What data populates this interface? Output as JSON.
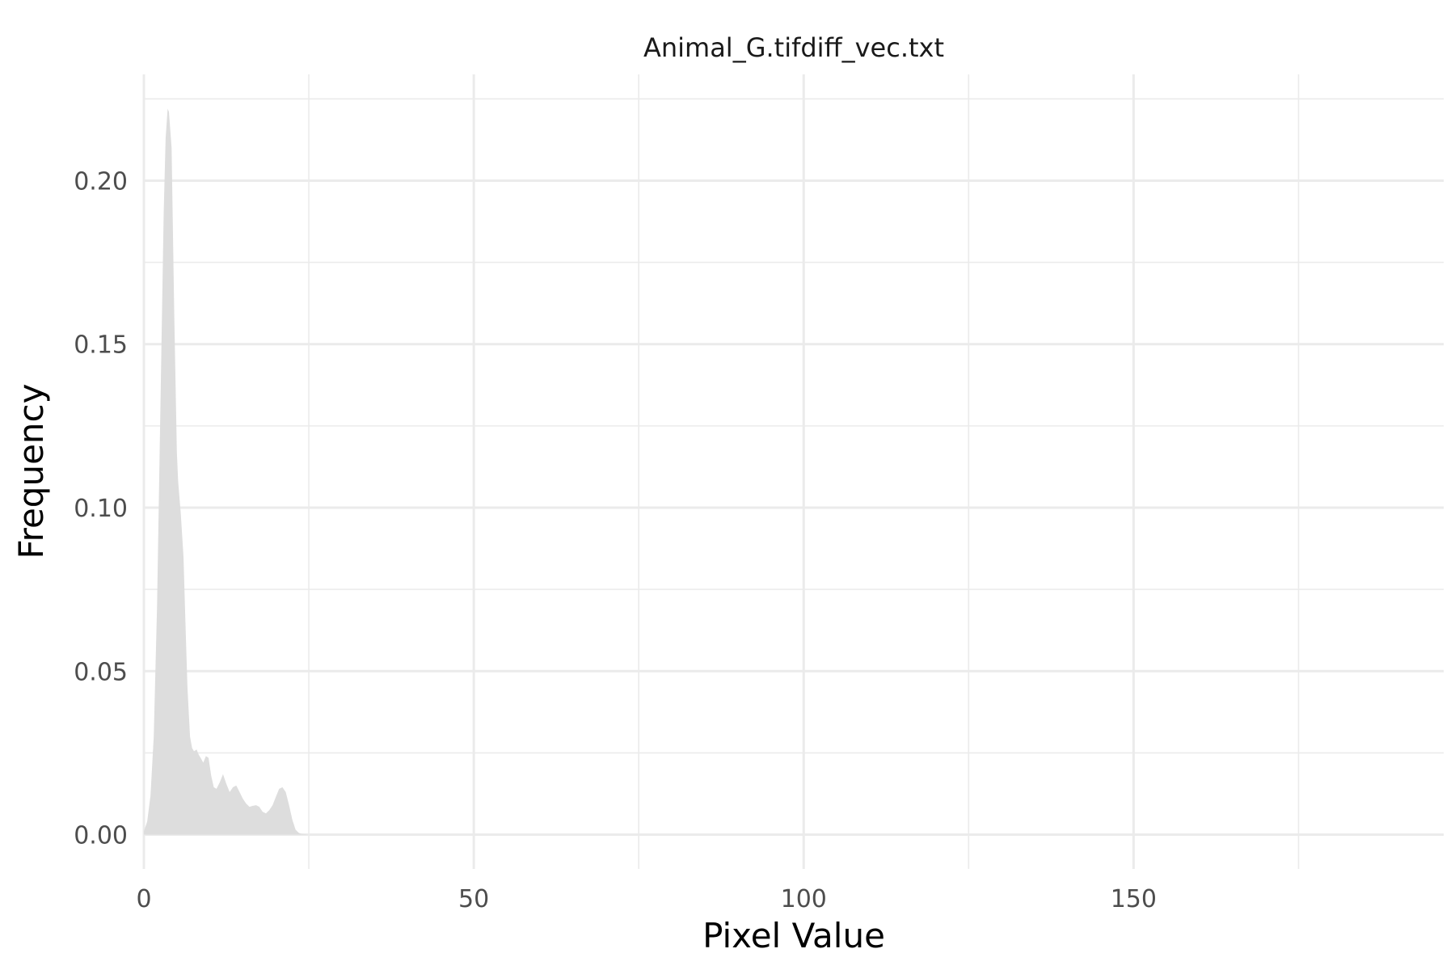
{
  "chart_data": {
    "type": "area",
    "title": "Animal_G.tifdiff_vec.txt",
    "xlabel": "Pixel Value",
    "ylabel": "Frequency",
    "xlim": [
      0,
      197
    ],
    "ylim": [
      -0.0105,
      0.2325
    ],
    "x_ticks": [
      0,
      50,
      100,
      150
    ],
    "x_tick_labels": [
      "0",
      "50",
      "100",
      "150"
    ],
    "x_minor_ticks": [
      25,
      75,
      125,
      175
    ],
    "y_ticks": [
      0,
      0.05,
      0.1,
      0.15,
      0.2
    ],
    "y_tick_labels": [
      "0.00",
      "0.05",
      "0.10",
      "0.15",
      "0.20"
    ],
    "y_minor_ticks": [
      0.025,
      0.075,
      0.125,
      0.175,
      0.225
    ],
    "grid": true,
    "fill_color": "#dddddd",
    "series": [
      {
        "x": [
          0,
          0.5,
          1,
          1.5,
          2,
          2.5,
          3,
          3.3,
          3.6,
          3.8,
          4.2,
          4.6,
          5,
          5.2,
          5.6,
          6,
          6.3,
          6.6,
          7,
          7.3,
          7.6,
          8,
          8.3,
          8.6,
          9,
          9.4,
          9.8,
          10.2,
          10.6,
          11,
          11.5,
          12,
          12.5,
          13,
          13.5,
          14,
          14.5,
          15,
          15.5,
          16,
          16.5,
          17,
          17.5,
          18,
          18.5,
          19,
          19.5,
          20,
          20.5,
          21,
          21.5,
          22,
          22.5,
          23,
          23.5,
          24,
          24.5,
          25,
          30,
          197
        ],
        "y": [
          0.001,
          0.004,
          0.012,
          0.03,
          0.07,
          0.13,
          0.19,
          0.213,
          0.222,
          0.221,
          0.21,
          0.16,
          0.117,
          0.108,
          0.098,
          0.085,
          0.065,
          0.045,
          0.03,
          0.0265,
          0.0255,
          0.026,
          0.0245,
          0.0235,
          0.022,
          0.024,
          0.0235,
          0.018,
          0.0145,
          0.014,
          0.016,
          0.0185,
          0.0155,
          0.013,
          0.0145,
          0.015,
          0.013,
          0.011,
          0.0095,
          0.0085,
          0.0088,
          0.009,
          0.0085,
          0.007,
          0.0065,
          0.0075,
          0.009,
          0.0115,
          0.014,
          0.0145,
          0.013,
          0.009,
          0.0045,
          0.0015,
          0.0005,
          0.0002,
          0.0001,
          0,
          0,
          0
        ]
      }
    ]
  }
}
